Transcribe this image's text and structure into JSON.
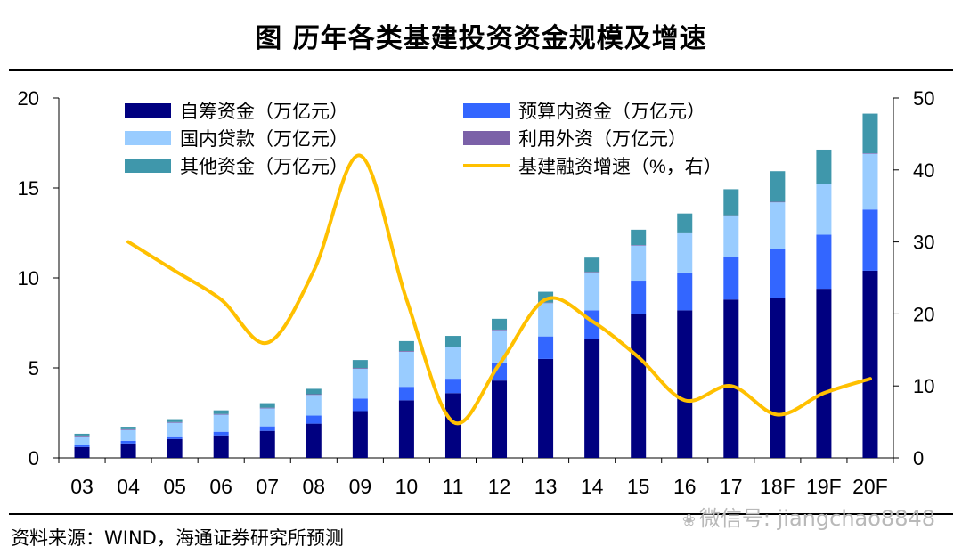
{
  "title": "图    历年各类基建投资资金规模及增速",
  "source": "资料来源：WIND，海通证券研究所预测",
  "watermark": "微信号: jiangchao8848",
  "chart_data": {
    "type": "bar",
    "stacked": true,
    "categories": [
      "03",
      "04",
      "05",
      "06",
      "07",
      "08",
      "09",
      "10",
      "11",
      "12",
      "13",
      "14",
      "15",
      "16",
      "17",
      "18F",
      "19F",
      "20F"
    ],
    "series": [
      {
        "name": "自筹资金（万亿元）",
        "color": "#000080",
        "values": [
          0.6,
          0.8,
          1.05,
          1.25,
          1.5,
          1.9,
          2.6,
          3.2,
          3.6,
          4.3,
          5.5,
          6.6,
          8.0,
          8.2,
          8.8,
          8.9,
          9.4,
          10.4
        ]
      },
      {
        "name": "预算内资金（万亿元）",
        "color": "#3366ff",
        "values": [
          0.1,
          0.15,
          0.15,
          0.2,
          0.25,
          0.45,
          0.7,
          0.75,
          0.8,
          1.0,
          1.25,
          1.6,
          1.85,
          2.1,
          2.35,
          2.7,
          3.0,
          3.4
        ]
      },
      {
        "name": "国内贷款（万亿元）",
        "color": "#99ccff",
        "values": [
          0.5,
          0.6,
          0.75,
          0.95,
          1.0,
          1.15,
          1.65,
          1.95,
          1.75,
          1.8,
          1.85,
          2.1,
          1.95,
          2.2,
          2.3,
          2.6,
          2.8,
          3.1
        ]
      },
      {
        "name": "利用外资（万亿元）",
        "color": "#7b61a8",
        "values": [
          0.04,
          0.04,
          0.04,
          0.04,
          0.04,
          0.04,
          0.04,
          0.04,
          0.03,
          0.03,
          0.03,
          0.03,
          0.03,
          0.03,
          0.03,
          0.03,
          0.03,
          0.03
        ]
      },
      {
        "name": "其他资金（万亿元）",
        "color": "#3f97ab",
        "values": [
          0.1,
          0.14,
          0.16,
          0.2,
          0.25,
          0.3,
          0.45,
          0.55,
          0.6,
          0.6,
          0.6,
          0.8,
          0.85,
          1.05,
          1.45,
          1.7,
          1.9,
          2.2
        ]
      }
    ],
    "line": {
      "name": "基建融资增速（%，右）",
      "color": "#ffc000",
      "axis": "right",
      "values": [
        null,
        30,
        26,
        22,
        16,
        26,
        42,
        22,
        5,
        13,
        22,
        19,
        14,
        8,
        10,
        6,
        9,
        11
      ]
    },
    "left_axis": {
      "ylim": [
        0,
        20
      ],
      "ticks": [
        0,
        5,
        10,
        15,
        20
      ]
    },
    "right_axis": {
      "ylim": [
        0,
        50
      ],
      "ticks": [
        0,
        10,
        20,
        30,
        40,
        50
      ]
    },
    "legend_placement": "top-center",
    "grid": false
  }
}
